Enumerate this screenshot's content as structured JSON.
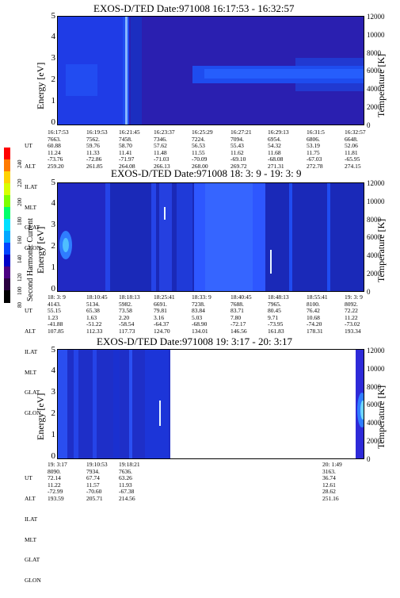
{
  "colorbar": {
    "label": "Second Harmonic Current",
    "ticks": [
      "240",
      "220",
      "200",
      "180",
      "160",
      "140",
      "120",
      "100",
      "80"
    ],
    "colors": [
      "#ff0000",
      "#ff7a00",
      "#ffd200",
      "#d8ff00",
      "#7dff00",
      "#00ff6a",
      "#00e0ff",
      "#00a8ff",
      "#0044ff",
      "#0000c8",
      "#4b0082",
      "#2a0040",
      "#000000"
    ]
  },
  "chart_data": [
    {
      "type": "heatmap",
      "title": "EXOS-D/TED   Date:971008   16:17:53 - 16:32:57",
      "ylabel": "Energy [eV]",
      "ylabel_right": "Temperature [K]",
      "ylim": [
        0,
        5
      ],
      "yticks": [
        "0",
        "1",
        "2",
        "3",
        "4",
        "5"
      ],
      "yticks_right": [
        "0",
        "2000",
        "4000",
        "6000",
        "8000",
        "10000",
        "12000"
      ],
      "ephemeris": {
        "labels": [
          "UT",
          "ALT",
          "ILAT",
          "MLT",
          "GLAT",
          "GLON"
        ],
        "columns": [
          [
            "16:17:53",
            "7663.",
            "60.88",
            "11.24",
            "-73.76",
            "259.20"
          ],
          [
            "16:19:53",
            "7562.",
            "59.76",
            "11.33",
            "-72.86",
            "261.85"
          ],
          [
            "16:21:45",
            "7458.",
            "58.70",
            "11.41",
            "-71.97",
            "264.08"
          ],
          [
            "16:23:37",
            "7346.",
            "57.62",
            "11.48",
            "-71.03",
            "266.13"
          ],
          [
            "16:25:29",
            "7224.",
            "56.53",
            "11.55",
            "-70.09",
            "268.00"
          ],
          [
            "16:27:21",
            "7094.",
            "55.43",
            "11.62",
            "-69.10",
            "269.72"
          ],
          [
            "16:29:13",
            "6954.",
            "54.32",
            "11.68",
            "-68.08",
            "271.31"
          ],
          [
            "16:31:5",
            "6806.",
            "53.19",
            "11.75",
            "-67.03",
            "272.78"
          ],
          [
            "16:32:57",
            "6648.",
            "52.06",
            "11.81",
            "-65.95",
            "274.15"
          ]
        ]
      }
    },
    {
      "type": "heatmap",
      "title": "EXOS-D/TED   Date:971008   18: 3: 9 - 19: 3: 9",
      "ylabel": "Energy [eV]",
      "ylabel_right": "Temperature [K]",
      "ylim": [
        0,
        5
      ],
      "yticks": [
        "0",
        "1",
        "2",
        "3",
        "4",
        "5"
      ],
      "yticks_right": [
        "0",
        "2000",
        "4000",
        "6000",
        "8000",
        "10000",
        "12000"
      ],
      "ephemeris": {
        "labels": [
          "UT",
          "ALT",
          "ILAT",
          "MLT",
          "GLAT",
          "GLON"
        ],
        "columns": [
          [
            "18: 3: 9",
            "4143.",
            "55.15",
            "1.23",
            "-41.88",
            "107.85"
          ],
          [
            "18:10:45",
            "5134.",
            "65.38",
            "1.63",
            "-51.22",
            "112.33"
          ],
          [
            "18:18:13",
            "5982.",
            "73.58",
            "2.20",
            "-58.54",
            "117.73"
          ],
          [
            "18:25:41",
            "6691.",
            "79.81",
            "3.16",
            "-64.37",
            "124.70"
          ],
          [
            "18:33: 9",
            "7238.",
            "83.84",
            "5.03",
            "-68.90",
            "134.01"
          ],
          [
            "18:40:45",
            "7688.",
            "83.71",
            "7.80",
            "-72.17",
            "146.56"
          ],
          [
            "18:48:13",
            "7965.",
            "80.45",
            "9.71",
            "-73.95",
            "161.83"
          ],
          [
            "18:55:41",
            "8100.",
            "76.42",
            "10.68",
            "-74.20",
            "178.31"
          ],
          [
            "19: 3: 9",
            "8092.",
            "72.22",
            "11.22",
            "-73.02",
            "193.34"
          ]
        ]
      }
    },
    {
      "type": "heatmap",
      "title": "EXOS-D/TED   Date:971008   19: 3:17 - 20: 3:17",
      "ylabel": "Energy [eV]",
      "ylabel_right": "Temperature [K]",
      "ylim": [
        0,
        5
      ],
      "yticks": [
        "0",
        "1",
        "2",
        "3",
        "4",
        "5"
      ],
      "yticks_right": [
        "0",
        "2000",
        "4000",
        "6000",
        "8000",
        "10000",
        "12000"
      ],
      "ephemeris": {
        "labels": [
          "UT",
          "ALT",
          "ILAT",
          "MLT",
          "GLAT",
          "GLON"
        ],
        "columns": [
          [
            "19: 3:17",
            "8090.",
            "72.14",
            "11.22",
            "-72.99",
            "193.59"
          ],
          [
            "19:10:53",
            "7934.",
            "67.74",
            "11.57",
            "-70.60",
            "205.71"
          ],
          [
            "19:18:21",
            "7636.",
            "63.26",
            "11.93",
            "-67.38",
            "214.56"
          ],
          [
            "20: 1:49",
            "3163.",
            "36.74",
            "12.61",
            "28.62",
            "251.16"
          ]
        ]
      }
    }
  ]
}
